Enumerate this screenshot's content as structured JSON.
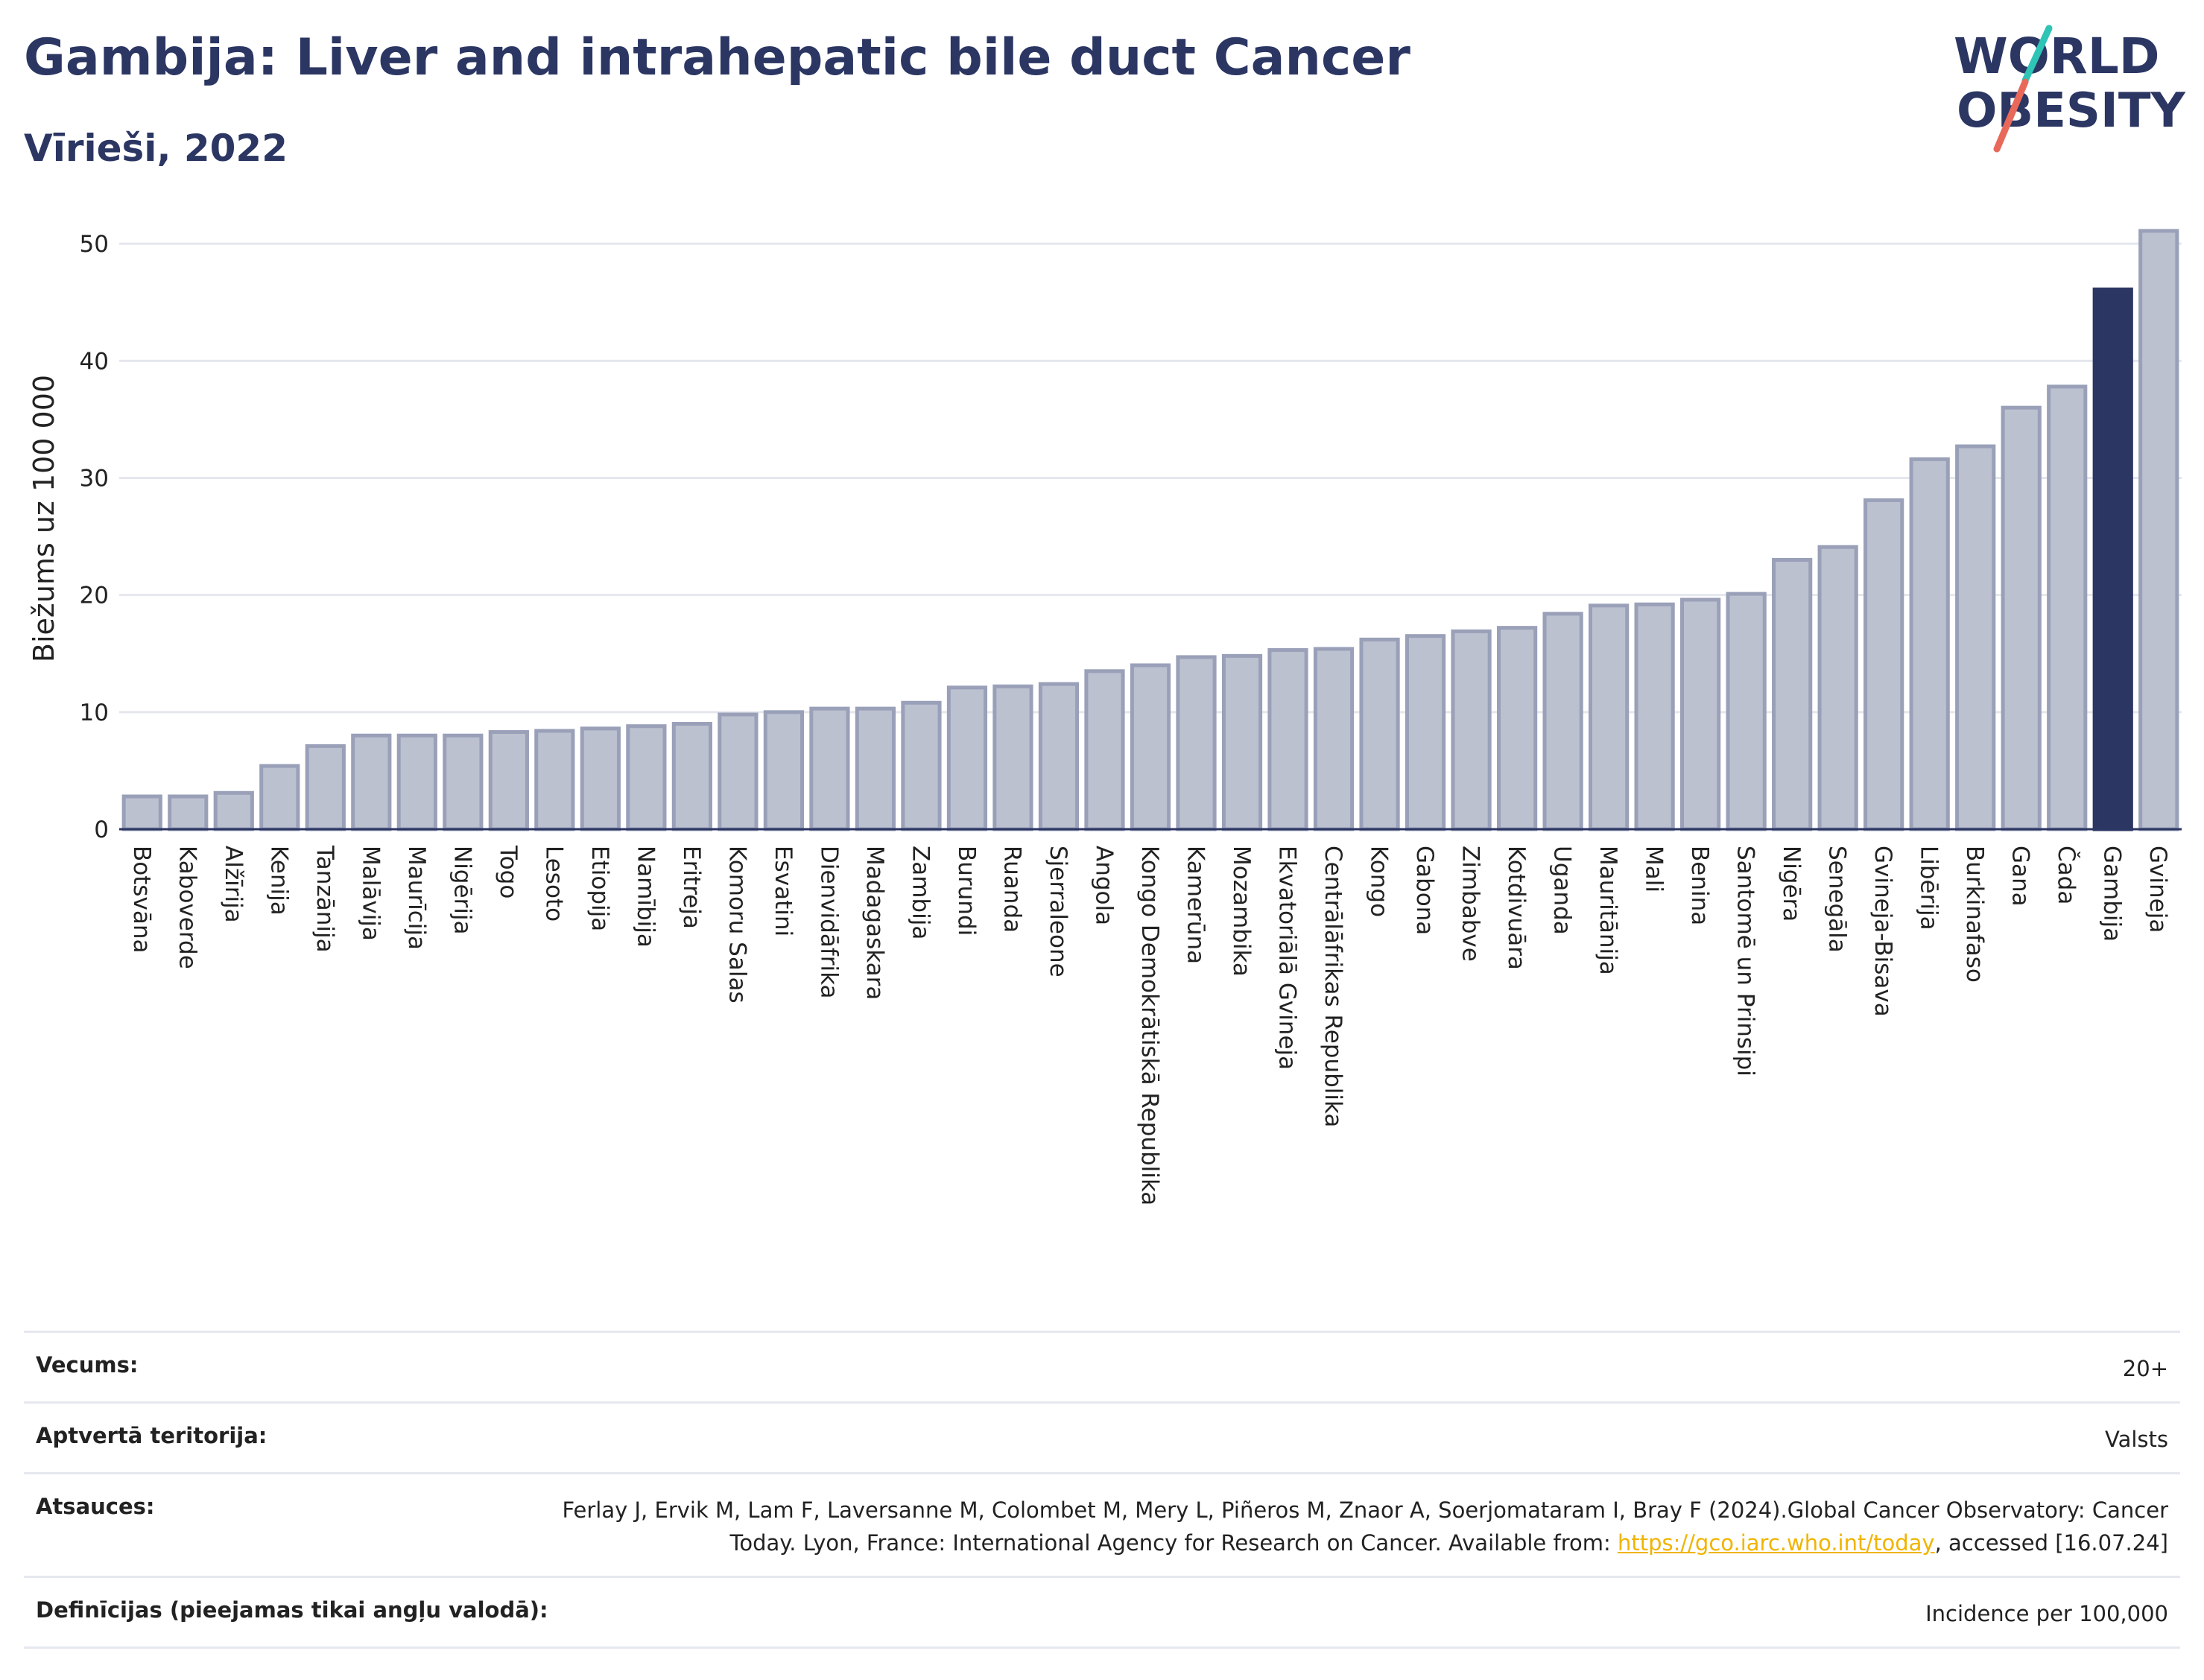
{
  "header": {
    "title": "Gambija: Liver and intrahepatic bile duct Cancer",
    "subtitle": "Vīrieši, 2022"
  },
  "logo": {
    "line1": "WORLD",
    "line2": "OBESITY"
  },
  "colors": {
    "bar": "#bcc1d0",
    "bar_edge": "#99a0b8",
    "highlight": "#2b3663",
    "title": "#2b3663",
    "grid": "#e5e7ee",
    "logo_teal": "#2ec4b6",
    "logo_coral": "#e8695a"
  },
  "chart_data": {
    "type": "bar",
    "title": "Gambija: Liver and intrahepatic bile duct Cancer",
    "subtitle": "Vīrieši, 2022",
    "ylabel": "Biežums uz 100 000",
    "xlabel": "",
    "ylim": [
      0,
      53
    ],
    "yticks": [
      0,
      10,
      20,
      30,
      40,
      50
    ],
    "grid": true,
    "highlight": "Gambija",
    "categories": [
      "Botsvāna",
      "Kaboverde",
      "Alžīrija",
      "Kenija",
      "Tanzānija",
      "Malāvija",
      "Maurīcija",
      "Nigērija",
      "Togo",
      "Lesoto",
      "Etiopija",
      "Namībija",
      "Eritreja",
      "Komoru Salas",
      "Esvatini",
      "Dienvidāfrika",
      "Madagaskara",
      "Zambija",
      "Burundi",
      "Ruanda",
      "Sjerraleone",
      "Angola",
      "Kongo Demokrātiskā Republika",
      "Kamerūna",
      "Mozambika",
      "Ekvatoriālā Gvineja",
      "Centrālāfrikas Republika",
      "Kongo",
      "Gabona",
      "Zimbabve",
      "Kotdivuāra",
      "Uganda",
      "Mauritānija",
      "Mali",
      "Benina",
      "Santomē un Prinsipi",
      "Nigēra",
      "Senegāla",
      "Gvineja-Bisava",
      "Libērija",
      "Burkinafaso",
      "Gana",
      "Čada",
      "Gambija",
      "Gvineja"
    ],
    "values": [
      2.8,
      2.8,
      3.1,
      5.4,
      7.1,
      8.0,
      8.0,
      8.0,
      8.3,
      8.4,
      8.6,
      8.8,
      9.0,
      9.8,
      10.0,
      10.3,
      10.3,
      10.8,
      12.1,
      12.2,
      12.4,
      13.5,
      14.0,
      14.7,
      14.8,
      15.3,
      15.4,
      16.2,
      16.5,
      16.9,
      17.2,
      18.4,
      19.1,
      19.2,
      19.6,
      20.1,
      23.0,
      24.1,
      28.1,
      31.6,
      32.7,
      36.0,
      37.8,
      46.1,
      51.1
    ]
  },
  "footer": {
    "rows": [
      {
        "label": "Vecums:",
        "value": "20+"
      },
      {
        "label": "Aptvertā teritorija:",
        "value": "Valsts"
      },
      {
        "label": "Atsauces:",
        "value_pre": "Ferlay J, Ervik M, Lam F, Laversanne M, Colombet M, Mery L, Piñeros M, Znaor A, Soerjomataram I, Bray F (2024).Global Cancer Observatory: Cancer Today. Lyon, France: International Agency for Research on Cancer. Available from: ",
        "link": "https://gco.iarc.who.int/today",
        "value_post": ", accessed [16.07.24]"
      },
      {
        "label": "Definīcijas (pieejamas tikai angļu valodā):",
        "value": "Incidence per 100,000"
      }
    ]
  }
}
